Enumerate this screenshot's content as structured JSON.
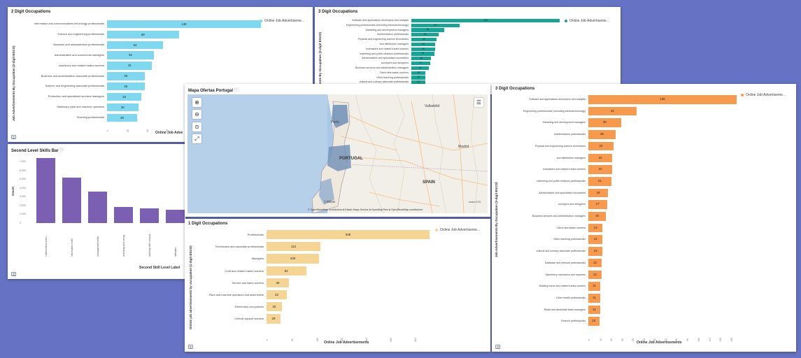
{
  "panels": {
    "p1": {
      "title": "2 Digit Occupations",
      "legend": "Online Job Advertiseme...",
      "ylabel": "Job Advertisements By Occupation (2-digit ESCO)",
      "xlabel": "Online Job Adve",
      "color": "#7ed8f0",
      "rows": [
        {
          "label": "Information and communications technology professionals",
          "value": 148
        },
        {
          "label": "Science and engineering professionals",
          "value": 69
        },
        {
          "label": "Business and administration professionals",
          "value": 54
        },
        {
          "label": "Administrative and commercial managers",
          "value": 45
        },
        {
          "label": "machinery and related trades workers",
          "value": 43
        },
        {
          "label": "Business and administration associate professionals",
          "value": 36
        },
        {
          "label": "Science and engineering associate professionals",
          "value": 36
        },
        {
          "label": "Production and specialised services managers",
          "value": 33
        },
        {
          "label": "Stationary plant and machine operators",
          "value": 30
        },
        {
          "label": "Teaching professionals",
          "value": 29
        }
      ],
      "ticks": [
        "0",
        "20",
        "40",
        "60"
      ]
    },
    "p2": {
      "title": "3 Digit Occupations",
      "legend": "Online Job Advertiseme...",
      "ylabel": "ents By Occupation (3-digit ESCO)",
      "color": "#16a594",
      "rows": [
        {
          "label": "Software and applications developers and analysts",
          "value": 136
        },
        {
          "label": "Engineering professionals (excluding electrotechnology)",
          "value": 44
        },
        {
          "label": "Marketing and development managers",
          "value": 30
        },
        {
          "label": "Administration professionals",
          "value": 25
        },
        {
          "label": "Physical and engineering science technicians",
          "value": 23
        },
        {
          "label": "and distribution managers",
          "value": 22
        },
        {
          "label": "toolmakers and related trades workers",
          "value": 22
        },
        {
          "label": "marketing and public relations professionals",
          "value": 21
        },
        {
          "label": "Administrative and specialised secretaries",
          "value": 18
        },
        {
          "label": "surveyors and designers",
          "value": 17
        },
        {
          "label": "Business services and administration managers",
          "value": 16
        },
        {
          "label": "Client information workers",
          "value": 13
        },
        {
          "label": "Other teaching professionals",
          "value": 13
        },
        {
          "label": "cultural and culinary associate professionals",
          "value": 13
        }
      ]
    },
    "p3": {
      "title": "Second Level Skills Bar",
      "ylabel": "Count",
      "xlabel": "Second Skill Level Label",
      "yticks": [
        "7,000",
        "6,000",
        "5,000",
        "4,000",
        "3,000",
        "2,000",
        "1,000",
        "0"
      ],
      "bars": [
        {
          "label": "collaboration and c...",
          "value": 7400
        },
        {
          "label": "information skills",
          "value": 5200
        },
        {
          "label": "management skills",
          "value": 3600
        },
        {
          "label": "assisting and caring",
          "value": 1850
        },
        {
          "label": "working with comput...",
          "value": 1700
        },
        {
          "label": "attitudes",
          "value": 1550
        }
      ]
    },
    "map": {
      "title": "Mapa Ofertas Portugal",
      "labels": {
        "portugal": "PORTUGAL",
        "spain": "SPAIN",
        "porto": "Porto",
        "lisboa": "Lisboa",
        "madrid": "Madrid",
        "valladolid": "Valladolid"
      },
      "zoom": "zoom: 5.70",
      "attribution": "© OpenStreetMap contributors  ⧉ Elastic Maps Service  ⧉ OpenMapTiles  ⧉ OpenStreetMap contributors"
    },
    "p5": {
      "title": "1 Digit Occupations",
      "legend": "Online Job Advertiseme...",
      "ylabel": "Online job advertisements by occupation (1-digit ESCO)",
      "xlabel": "Online Job Advertisements",
      "color": "#f6d594",
      "rows": [
        {
          "label": "Professionals",
          "value": 338
        },
        {
          "label": "Technicians and associate professionals",
          "value": 112
        },
        {
          "label": "Managers",
          "value": 109
        },
        {
          "label": "Craft and related trades workers",
          "value": 82
        },
        {
          "label": "Service and sales workers",
          "value": 46
        },
        {
          "label": "Plant and machine operators and assemblers",
          "value": 42
        },
        {
          "label": "Elementary occupations",
          "value": 32
        },
        {
          "label": "Clerical support workers",
          "value": 29
        }
      ],
      "ticks": [
        "0",
        "50",
        "100",
        "150",
        "200",
        "250",
        "300"
      ]
    },
    "p6": {
      "title": "3 Digit Occupations",
      "legend": "Online Job Advertiseme...",
      "ylabel": "Job Advertisements By Occupation (3-digit ESCO)",
      "xlabel": "Online Job Advertisements",
      "color": "#f79a4e",
      "rows": [
        {
          "label": "Software and applications developers and analysts",
          "value": 136
        },
        {
          "label": "Engineering professionals (excluding electrotechnology)",
          "value": 44
        },
        {
          "label": "Marketing and development managers",
          "value": 30
        },
        {
          "label": "Administration professionals",
          "value": 25
        },
        {
          "label": "Physical and engineering science technicians",
          "value": 23
        },
        {
          "label": "and distribution managers",
          "value": 22
        },
        {
          "label": "toolmakers and related trades workers",
          "value": 22
        },
        {
          "label": "marketing and public relations professionals",
          "value": 21
        },
        {
          "label": "Administrative and specialised secretaries",
          "value": 18
        },
        {
          "label": "surveyors and designers",
          "value": 17
        },
        {
          "label": "Business services and administration managers",
          "value": 16
        },
        {
          "label": "Client information workers",
          "value": 13
        },
        {
          "label": "Other teaching professionals",
          "value": 13
        },
        {
          "label": "cultural and culinary associate professionals",
          "value": 13
        },
        {
          "label": "Database and network professionals",
          "value": 12
        },
        {
          "label": "Machinery mechanics and repairers",
          "value": 12
        },
        {
          "label": "Building frame and related trades workers",
          "value": 11
        },
        {
          "label": "Other health professionals",
          "value": 11
        },
        {
          "label": "Retail and wholesale trade managers",
          "value": 11
        },
        {
          "label": "Finance professionals",
          "value": 10
        }
      ],
      "ticks": [
        "0",
        "10",
        "20",
        "30",
        "40",
        "50",
        "60",
        "70",
        "80",
        "90",
        "100",
        "110",
        "120",
        "130"
      ]
    }
  }
}
